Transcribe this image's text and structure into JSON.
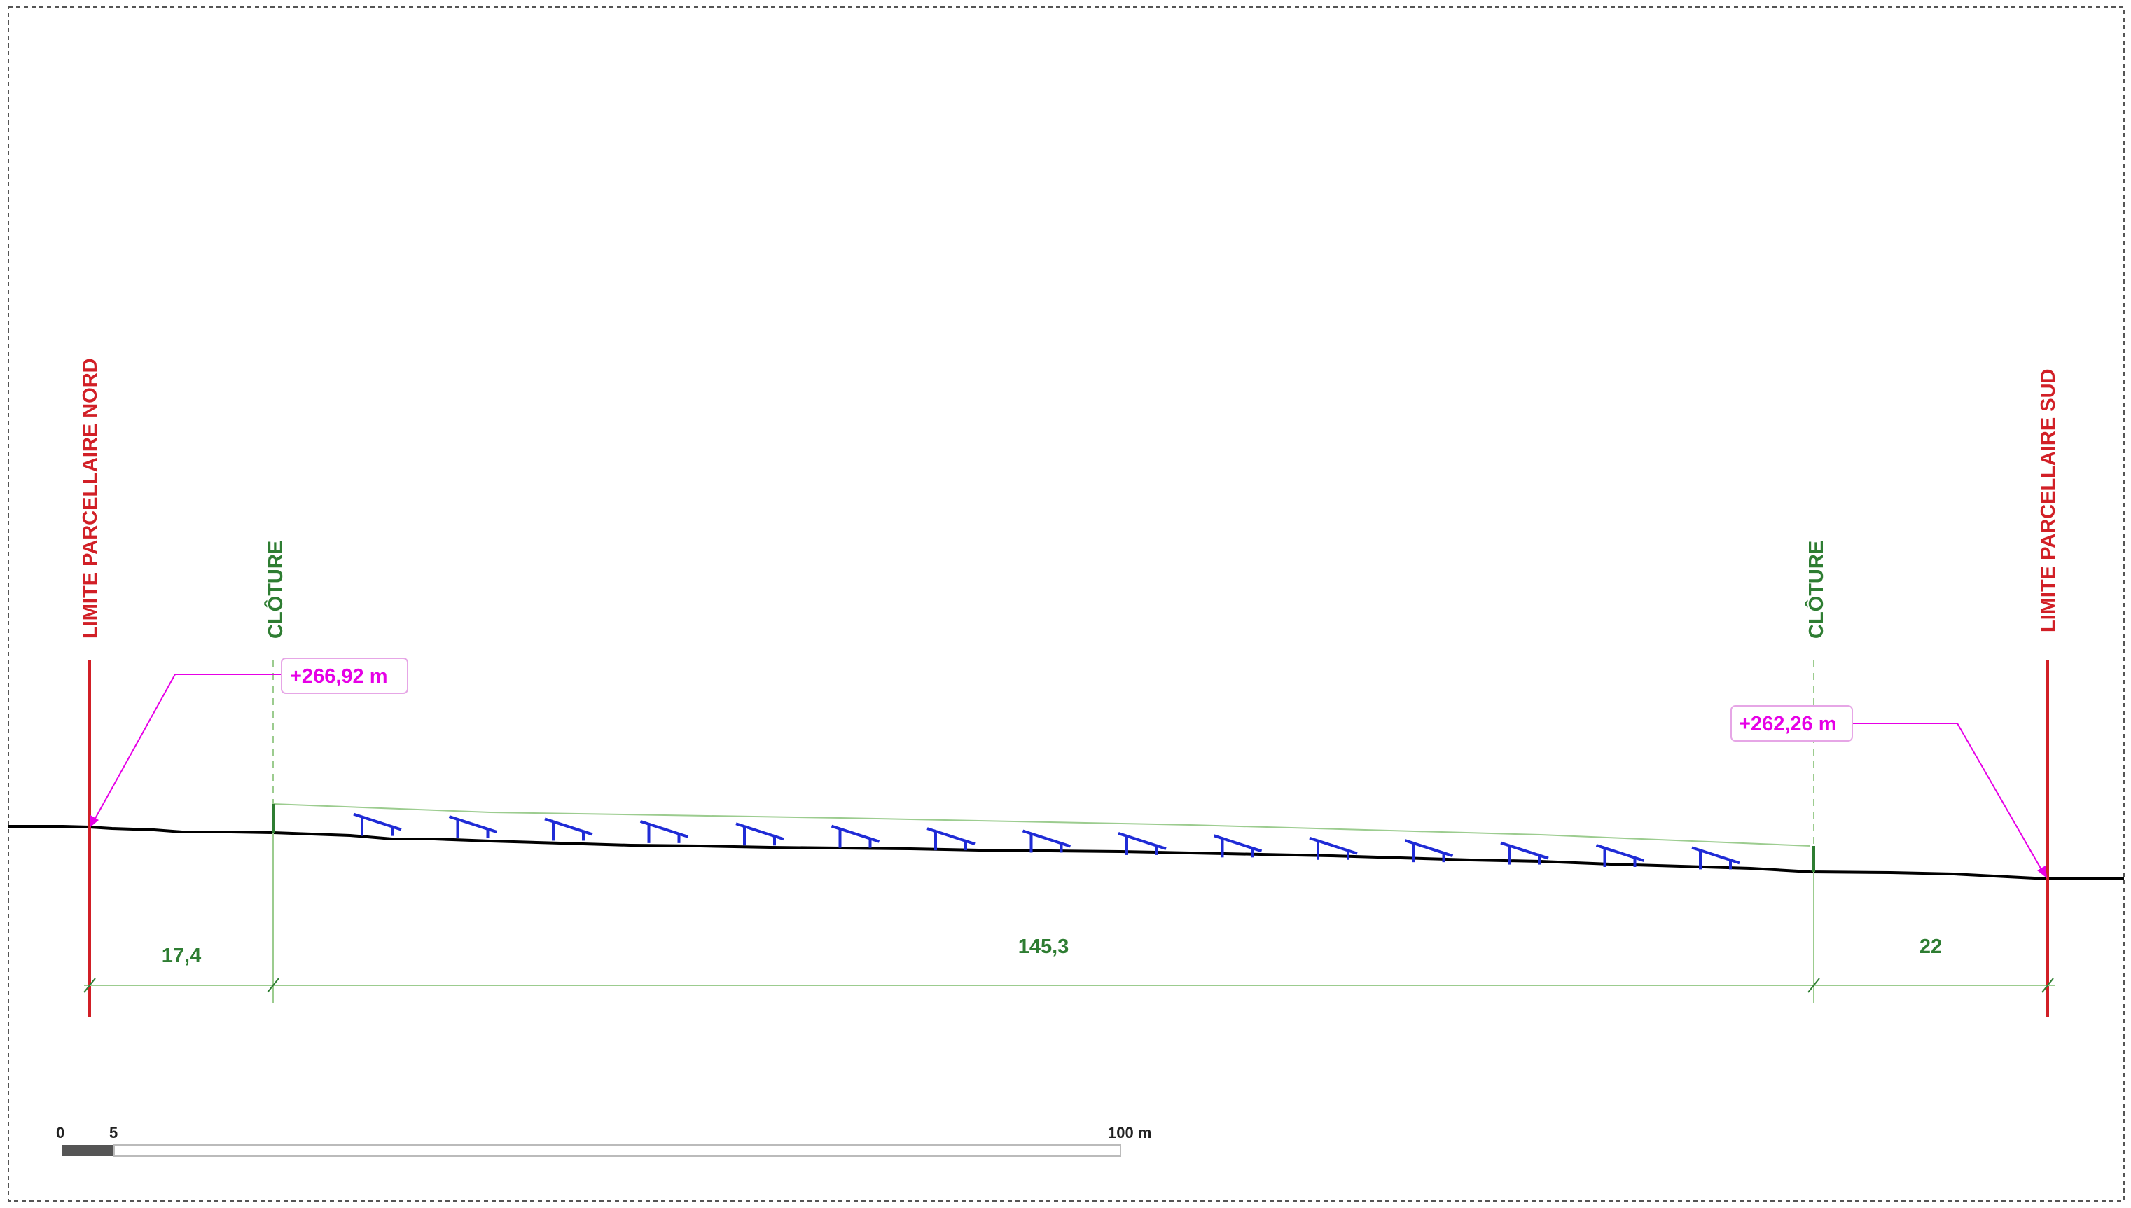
{
  "labels": {
    "limit_north": "LIMITE PARCELLAIRE NORD",
    "limit_south": "LIMITE PARCELLAIRE SUD",
    "fence_left": "CLÔTURE",
    "fence_right": "CLÔTURE"
  },
  "elevations": {
    "north": "+266,92 m",
    "south": "+262,26 m"
  },
  "dimensions": {
    "north_to_fence": "17,4",
    "fence_to_fence": "145,3",
    "fence_to_south": "22"
  },
  "scale_bar": {
    "label_zero": "0",
    "label_five": "5",
    "label_end": "100 m"
  },
  "panel_rows_count": 15,
  "colors": {
    "limit": "#d11f26",
    "fence": "#2e7d32",
    "elevation": "#e600e6",
    "panels": "#1f2bd6",
    "terrain": "#000000",
    "dimension": "#9ccc8f"
  }
}
